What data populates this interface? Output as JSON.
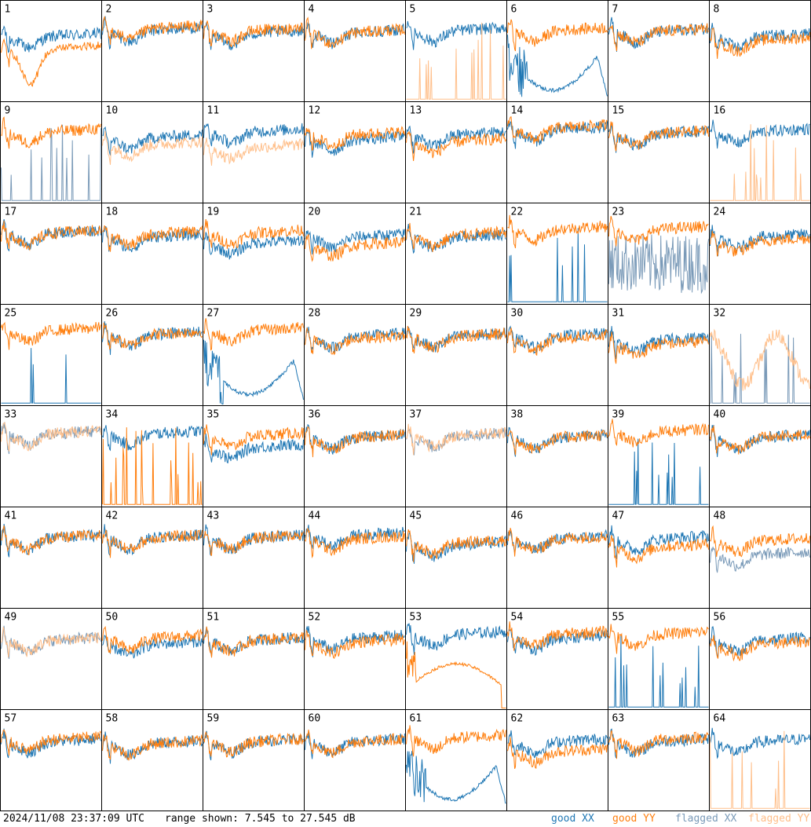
{
  "footer": {
    "timestamp": "2024/11/08 23:37:09 UTC",
    "range_text": "range shown: 7.545 to 27.545 dB",
    "legend": [
      {
        "label": "good XX",
        "color": "#1f77b4"
      },
      {
        "label": "good YY",
        "color": "#ff7f0e"
      },
      {
        "label": "flagged XX",
        "color": "#7a9ab8"
      },
      {
        "label": "flagged YY",
        "color": "#ffbf8a"
      }
    ]
  },
  "chart_data": {
    "type": "line",
    "ylim": [
      7.545,
      27.545
    ],
    "yunit": "dB",
    "grid": false,
    "layout": "8x8 small multiples",
    "colors": {
      "good_xx": "#1f77b4",
      "good_yy": "#ff7f0e",
      "flagged_xx": "#7a9ab8",
      "flagged_yy": "#ffbf8a"
    },
    "tiles": [
      {
        "label": "1",
        "xx": "good",
        "yy": "good",
        "xx_level": 0.62,
        "yy_level": 0.5,
        "variant": "yydip"
      },
      {
        "label": "2",
        "xx": "good",
        "yy": "good",
        "xx_level": 0.68,
        "yy_level": 0.7,
        "variant": "normal"
      },
      {
        "label": "3",
        "xx": "good",
        "yy": "good",
        "xx_level": 0.65,
        "yy_level": 0.68,
        "variant": "normal"
      },
      {
        "label": "4",
        "xx": "good",
        "yy": "good",
        "xx_level": 0.66,
        "yy_level": 0.66,
        "variant": "normal"
      },
      {
        "label": "5",
        "xx": "good",
        "yy": "flagged",
        "xx_level": 0.68,
        "yy_level": 0.05,
        "variant": "yyspikes"
      },
      {
        "label": "6",
        "xx": "good",
        "yy": "good",
        "xx_level": 0.55,
        "yy_level": 0.68,
        "variant": "xxbowl"
      },
      {
        "label": "7",
        "xx": "good",
        "yy": "good",
        "xx_level": 0.67,
        "yy_level": 0.67,
        "variant": "normal"
      },
      {
        "label": "8",
        "xx": "good",
        "yy": "good",
        "xx_level": 0.62,
        "yy_level": 0.58,
        "variant": "normal"
      },
      {
        "label": "9",
        "xx": "flagged",
        "yy": "good",
        "xx_level": 0.05,
        "yy_level": 0.68,
        "variant": "xxspikesflagged"
      },
      {
        "label": "10",
        "xx": "good",
        "yy": "flagged",
        "xx_level": 0.62,
        "yy_level": 0.55,
        "variant": "normal"
      },
      {
        "label": "11",
        "xx": "good",
        "yy": "flagged",
        "xx_level": 0.68,
        "yy_level": 0.52,
        "variant": "normal"
      },
      {
        "label": "12",
        "xx": "good",
        "yy": "good",
        "xx_level": 0.6,
        "yy_level": 0.65,
        "variant": "normal"
      },
      {
        "label": "13",
        "xx": "good",
        "yy": "good",
        "xx_level": 0.65,
        "yy_level": 0.58,
        "variant": "normal"
      },
      {
        "label": "14",
        "xx": "good",
        "yy": "good",
        "xx_level": 0.7,
        "yy_level": 0.72,
        "variant": "normal"
      },
      {
        "label": "15",
        "xx": "good",
        "yy": "good",
        "xx_level": 0.66,
        "yy_level": 0.66,
        "variant": "normal"
      },
      {
        "label": "16",
        "xx": "good",
        "yy": "flagged",
        "xx_level": 0.68,
        "yy_level": 0.05,
        "variant": "yyspikes"
      },
      {
        "label": "17",
        "xx": "good",
        "yy": "good",
        "xx_level": 0.68,
        "yy_level": 0.68,
        "variant": "normal"
      },
      {
        "label": "18",
        "xx": "good",
        "yy": "good",
        "xx_level": 0.64,
        "yy_level": 0.67,
        "variant": "normal"
      },
      {
        "label": "19",
        "xx": "good",
        "yy": "good",
        "xx_level": 0.58,
        "yy_level": 0.68,
        "variant": "normal"
      },
      {
        "label": "20",
        "xx": "good",
        "yy": "good",
        "xx_level": 0.64,
        "yy_level": 0.56,
        "variant": "normal"
      },
      {
        "label": "21",
        "xx": "good",
        "yy": "good",
        "xx_level": 0.64,
        "yy_level": 0.66,
        "variant": "normal"
      },
      {
        "label": "22",
        "xx": "good",
        "yy": "good",
        "xx_level": 0.05,
        "yy_level": 0.72,
        "variant": "xxspikes"
      },
      {
        "label": "23",
        "xx": "flagged",
        "yy": "good",
        "xx_level": 0.3,
        "yy_level": 0.72,
        "variant": "xxnoiseflagged"
      },
      {
        "label": "24",
        "xx": "good",
        "yy": "good",
        "xx_level": 0.64,
        "yy_level": 0.6,
        "variant": "normal"
      },
      {
        "label": "25",
        "xx": "good",
        "yy": "good",
        "xx_level": 0.05,
        "yy_level": 0.72,
        "variant": "xxlow"
      },
      {
        "label": "26",
        "xx": "good",
        "yy": "good",
        "xx_level": 0.68,
        "yy_level": 0.68,
        "variant": "normal"
      },
      {
        "label": "27",
        "xx": "good",
        "yy": "good",
        "xx_level": 0.35,
        "yy_level": 0.72,
        "variant": "xxbowl"
      },
      {
        "label": "28",
        "xx": "good",
        "yy": "good",
        "xx_level": 0.66,
        "yy_level": 0.64,
        "variant": "normal"
      },
      {
        "label": "29",
        "xx": "good",
        "yy": "good",
        "xx_level": 0.66,
        "yy_level": 0.66,
        "variant": "normal"
      },
      {
        "label": "30",
        "xx": "good",
        "yy": "good",
        "xx_level": 0.66,
        "yy_level": 0.64,
        "variant": "normal"
      },
      {
        "label": "31",
        "xx": "good",
        "yy": "good",
        "xx_level": 0.62,
        "yy_level": 0.58,
        "variant": "normal"
      },
      {
        "label": "32",
        "xx": "flagged",
        "yy": "flagged",
        "xx_level": 0.05,
        "yy_level": 0.58,
        "variant": "flaggedboth"
      },
      {
        "label": "33",
        "xx": "flagged",
        "yy": "flagged",
        "xx_level": 0.7,
        "yy_level": 0.7,
        "variant": "normal"
      },
      {
        "label": "34",
        "xx": "good",
        "yy": "good",
        "xx_level": 0.7,
        "yy_level": 0.05,
        "variant": "yyspikesgood"
      },
      {
        "label": "35",
        "xx": "good",
        "yy": "good",
        "xx_level": 0.56,
        "yy_level": 0.68,
        "variant": "normal"
      },
      {
        "label": "36",
        "xx": "good",
        "yy": "good",
        "xx_level": 0.66,
        "yy_level": 0.66,
        "variant": "normal"
      },
      {
        "label": "37",
        "xx": "flagged",
        "yy": "flagged",
        "xx_level": 0.68,
        "yy_level": 0.68,
        "variant": "normal"
      },
      {
        "label": "38",
        "xx": "good",
        "yy": "good",
        "xx_level": 0.66,
        "yy_level": 0.66,
        "variant": "normal"
      },
      {
        "label": "39",
        "xx": "good",
        "yy": "good",
        "xx_level": 0.05,
        "yy_level": 0.72,
        "variant": "xxspikes"
      },
      {
        "label": "40",
        "xx": "good",
        "yy": "good",
        "xx_level": 0.66,
        "yy_level": 0.66,
        "variant": "normal"
      },
      {
        "label": "41",
        "xx": "good",
        "yy": "good",
        "xx_level": 0.67,
        "yy_level": 0.67,
        "variant": "normal"
      },
      {
        "label": "42",
        "xx": "good",
        "yy": "good",
        "xx_level": 0.67,
        "yy_level": 0.67,
        "variant": "normal"
      },
      {
        "label": "43",
        "xx": "good",
        "yy": "good",
        "xx_level": 0.67,
        "yy_level": 0.67,
        "variant": "normal"
      },
      {
        "label": "44",
        "xx": "good",
        "yy": "good",
        "xx_level": 0.7,
        "yy_level": 0.66,
        "variant": "normal"
      },
      {
        "label": "45",
        "xx": "good",
        "yy": "good",
        "xx_level": 0.6,
        "yy_level": 0.62,
        "variant": "normal"
      },
      {
        "label": "46",
        "xx": "good",
        "yy": "good",
        "xx_level": 0.66,
        "yy_level": 0.66,
        "variant": "normal"
      },
      {
        "label": "47",
        "xx": "good",
        "yy": "good",
        "xx_level": 0.66,
        "yy_level": 0.58,
        "variant": "normal"
      },
      {
        "label": "48",
        "xx": "flagged",
        "yy": "good",
        "xx_level": 0.5,
        "yy_level": 0.64,
        "variant": "normal"
      },
      {
        "label": "49",
        "xx": "flagged",
        "yy": "flagged",
        "xx_level": 0.66,
        "yy_level": 0.66,
        "variant": "normal"
      },
      {
        "label": "50",
        "xx": "good",
        "yy": "good",
        "xx_level": 0.62,
        "yy_level": 0.68,
        "variant": "normal"
      },
      {
        "label": "51",
        "xx": "good",
        "yy": "good",
        "xx_level": 0.66,
        "yy_level": 0.66,
        "variant": "normal"
      },
      {
        "label": "52",
        "xx": "good",
        "yy": "good",
        "xx_level": 0.68,
        "yy_level": 0.64,
        "variant": "normal"
      },
      {
        "label": "53",
        "xx": "good",
        "yy": "good",
        "xx_level": 0.72,
        "yy_level": 0.35,
        "variant": "yybowl"
      },
      {
        "label": "54",
        "xx": "good",
        "yy": "good",
        "xx_level": 0.68,
        "yy_level": 0.72,
        "variant": "normal"
      },
      {
        "label": "55",
        "xx": "good",
        "yy": "good",
        "xx_level": 0.05,
        "yy_level": 0.72,
        "variant": "xxspikes"
      },
      {
        "label": "56",
        "xx": "good",
        "yy": "good",
        "xx_level": 0.66,
        "yy_level": 0.62,
        "variant": "normal"
      },
      {
        "label": "57",
        "xx": "good",
        "yy": "good",
        "xx_level": 0.66,
        "yy_level": 0.68,
        "variant": "normal"
      },
      {
        "label": "58",
        "xx": "good",
        "yy": "good",
        "xx_level": 0.64,
        "yy_level": 0.64,
        "variant": "normal"
      },
      {
        "label": "59",
        "xx": "good",
        "yy": "good",
        "xx_level": 0.66,
        "yy_level": 0.66,
        "variant": "normal"
      },
      {
        "label": "60",
        "xx": "good",
        "yy": "good",
        "xx_level": 0.66,
        "yy_level": 0.66,
        "variant": "normal"
      },
      {
        "label": "61",
        "xx": "good",
        "yy": "good",
        "xx_level": 0.35,
        "yy_level": 0.7,
        "variant": "xxbowl"
      },
      {
        "label": "62",
        "xx": "good",
        "yy": "good",
        "xx_level": 0.66,
        "yy_level": 0.56,
        "variant": "normal"
      },
      {
        "label": "63",
        "xx": "good",
        "yy": "good",
        "xx_level": 0.66,
        "yy_level": 0.68,
        "variant": "normal"
      },
      {
        "label": "64",
        "xx": "good",
        "yy": "flagged",
        "xx_level": 0.66,
        "yy_level": 0.05,
        "variant": "yyspikes"
      }
    ]
  }
}
